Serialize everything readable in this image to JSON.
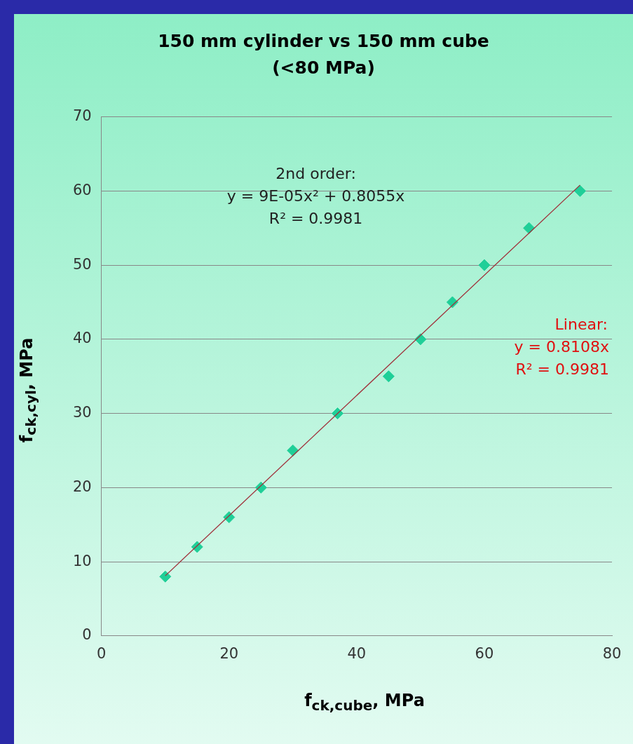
{
  "chart_data": {
    "type": "scatter",
    "title": "150 mm cylinder vs 150 mm cube\n(<80 MPa)",
    "xlabel": "f$_{ck,cube}$, MPa",
    "ylabel": "f$_{ck,cyl}$, MPa",
    "x": [
      10,
      15,
      20,
      25,
      30,
      37,
      45,
      50,
      55,
      60,
      67,
      75
    ],
    "series": [
      {
        "color": "#1fcf98",
        "marker": "diamond",
        "values": [
          8,
          12,
          16,
          20,
          25,
          30,
          35,
          40,
          45,
          50,
          55,
          60
        ]
      },
      {
        "type": "line",
        "color": "#a0303a",
        "marker": "none",
        "x": [
          10,
          75
        ],
        "values": [
          8.1,
          60.8
        ]
      }
    ],
    "xlim": [
      0,
      80
    ],
    "xticks": [
      0,
      20,
      40,
      60,
      80
    ],
    "ylim": [
      0,
      70
    ],
    "yticks": [
      0,
      10,
      20,
      30,
      40,
      50,
      60,
      70
    ],
    "grid": "y",
    "legend": false,
    "annotations": [
      "2nd order:\ny = 9E-05x² + 0.8055x\nR² = 0.9981",
      "Linear:\ny = 0.8108x\nR² = 0.9981"
    ]
  }
}
